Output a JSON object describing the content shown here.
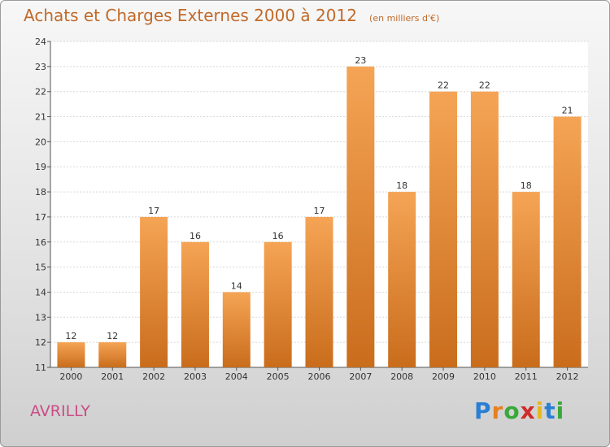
{
  "header": {
    "title": "Achats et Charges Externes 2000 à 2012",
    "subtitle": "(en milliers d'€)"
  },
  "city": "AVRILLY",
  "logo": {
    "text": "Proxiti",
    "letters": [
      "P",
      "r",
      "o",
      "x",
      "i",
      "t",
      "i"
    ],
    "colors": [
      "#2a7fd4",
      "#e8801e",
      "#3aa83a",
      "#d12a2a",
      "#e8b71e",
      "#2a7fd4",
      "#3aa83a"
    ]
  },
  "chart_data": {
    "type": "bar",
    "categories": [
      "2000",
      "2001",
      "2002",
      "2003",
      "2004",
      "2005",
      "2006",
      "2007",
      "2008",
      "2009",
      "2010",
      "2011",
      "2012"
    ],
    "values": [
      12,
      12,
      17,
      16,
      14,
      16,
      17,
      23,
      18,
      22,
      22,
      18,
      21
    ],
    "title": "Achats et Charges Externes 2000 à 2012",
    "subtitle": "(en milliers d'€)",
    "ylim": [
      11,
      24
    ],
    "yticks": [
      11,
      12,
      13,
      14,
      15,
      16,
      17,
      18,
      19,
      20,
      21,
      22,
      23,
      24
    ],
    "grid": true,
    "bar_color_top": "#f5a455",
    "bar_color_bottom": "#c96d1c"
  }
}
